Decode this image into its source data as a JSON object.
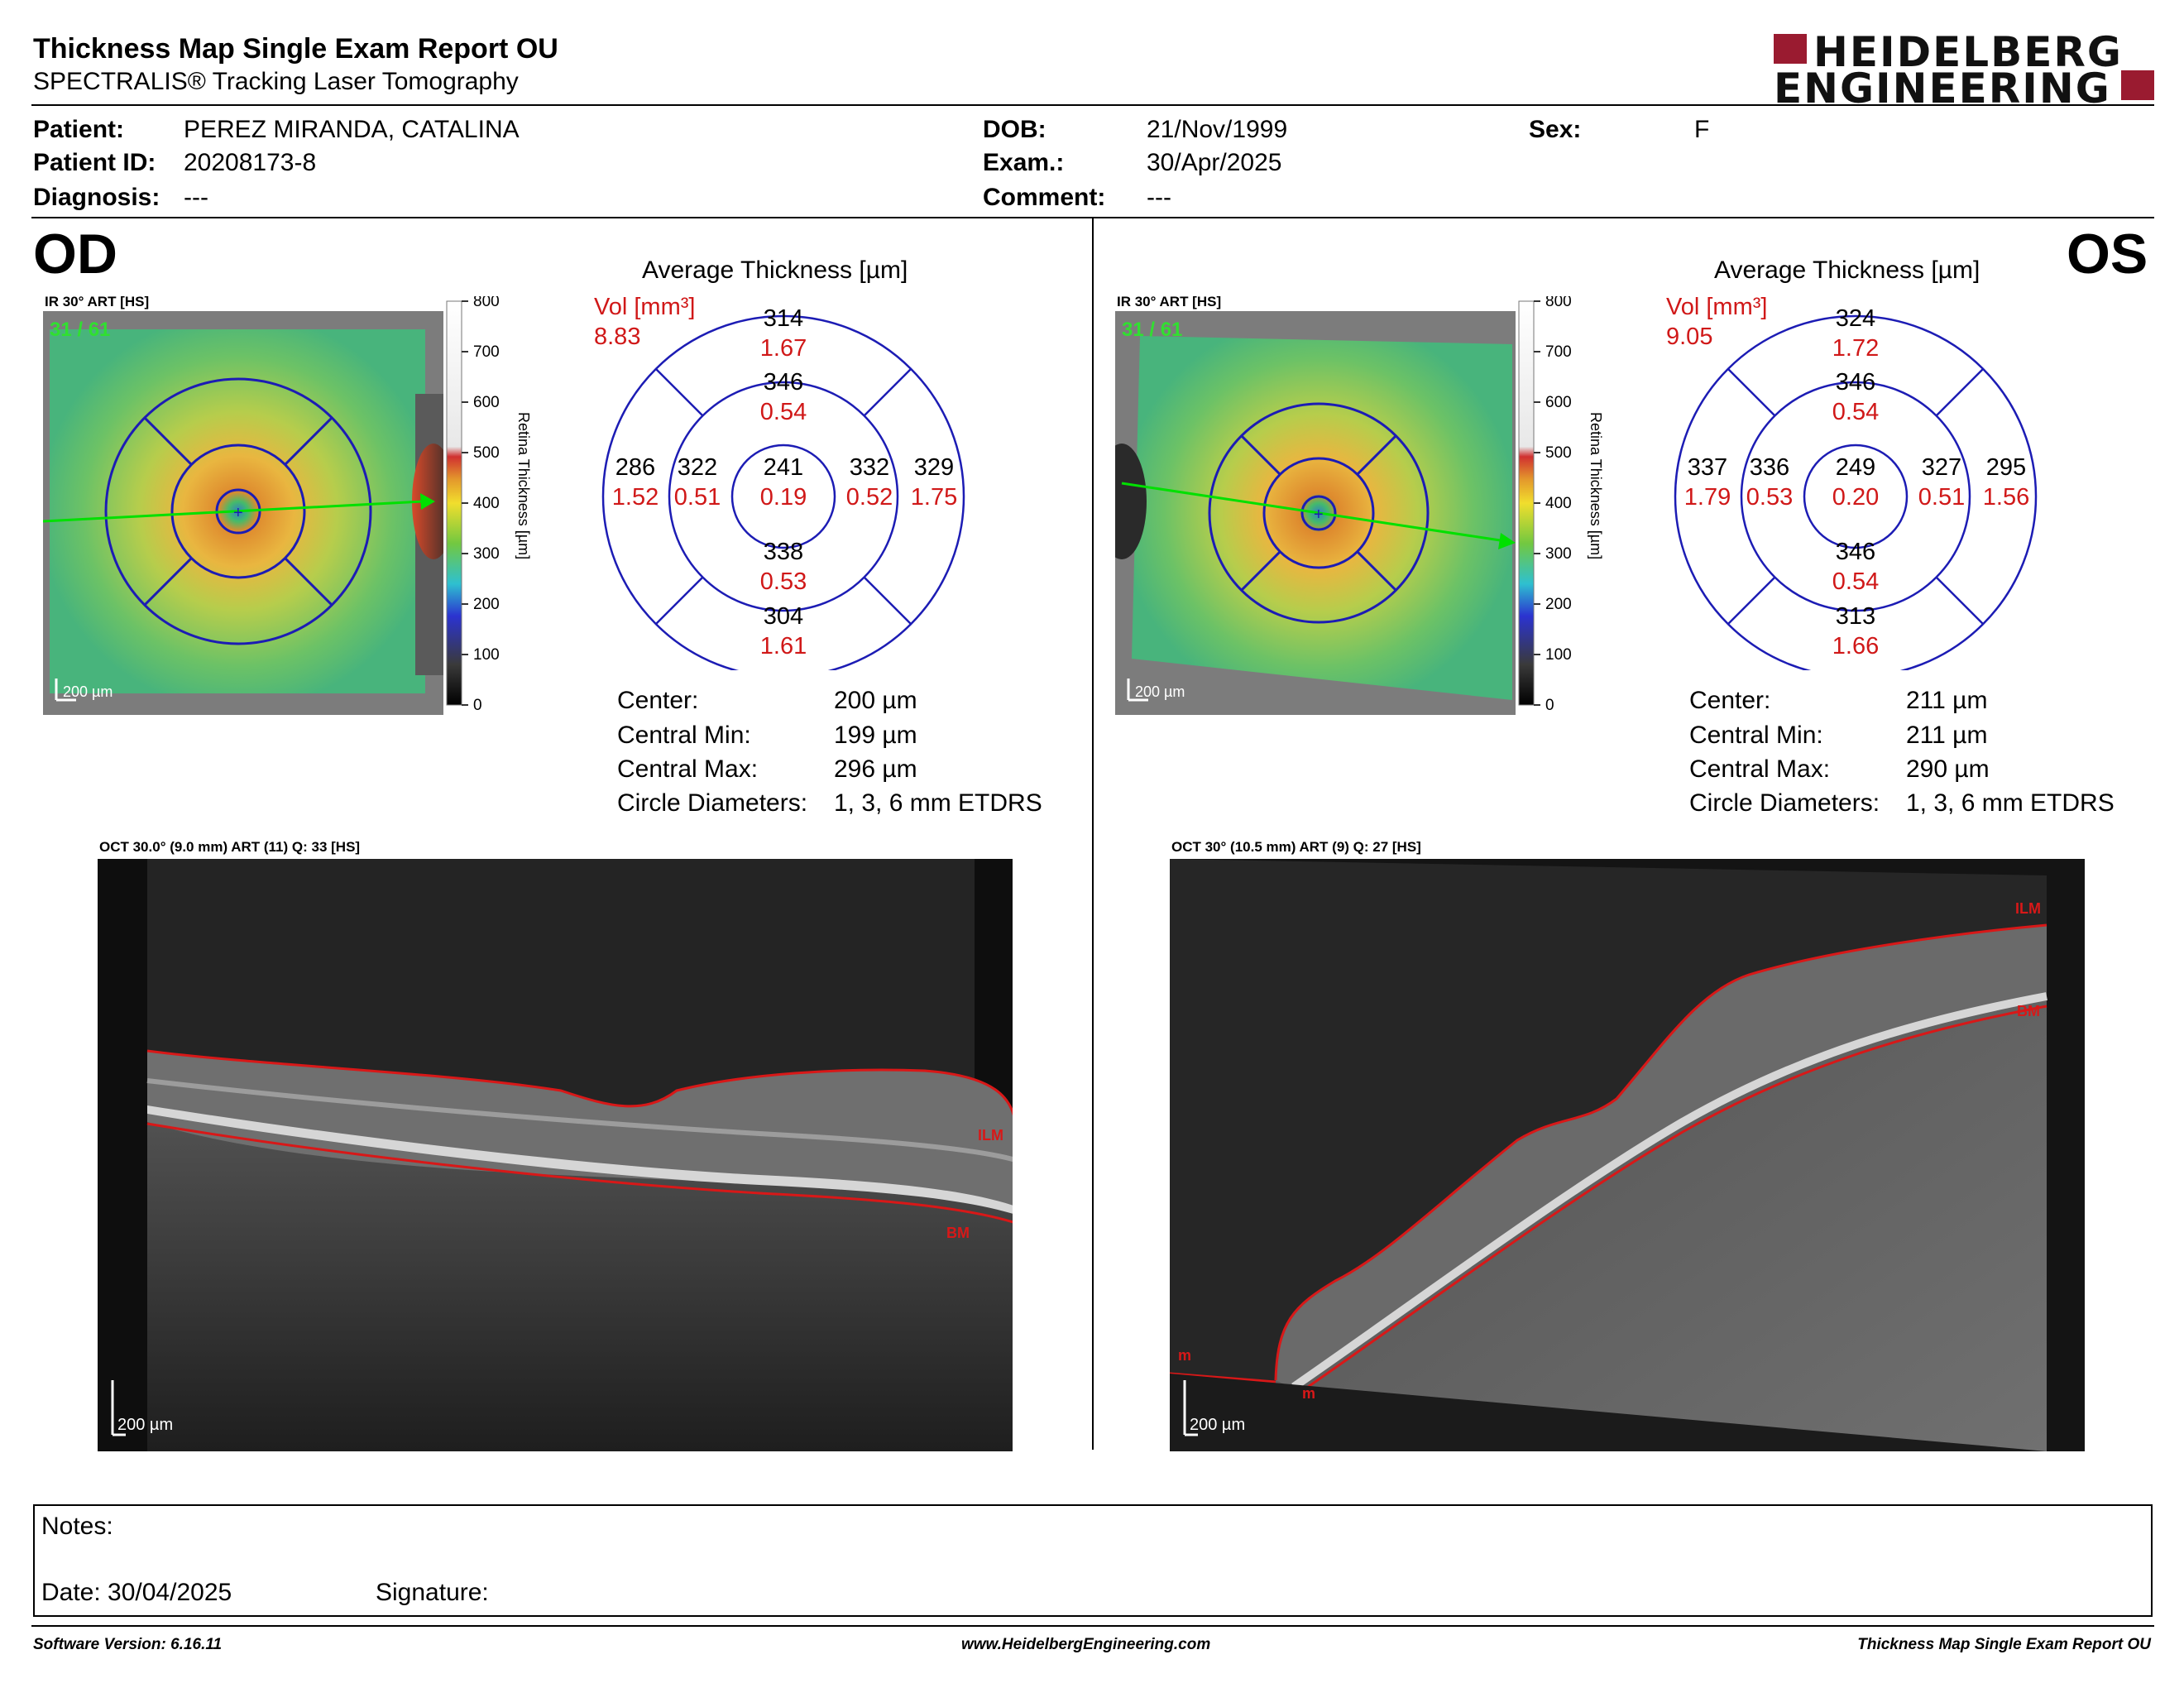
{
  "header": {
    "title": "Thickness Map Single Exam Report OU",
    "subtitle": "SPECTRALIS® Tracking Laser Tomography",
    "logo_line1": "HEIDELBERG",
    "logo_line2": "ENGINEERING",
    "brand_color": "#9a1b30"
  },
  "patient": {
    "patient_label": "Patient:",
    "patient_value": "PEREZ MIRANDA, CATALINA",
    "id_label": "Patient ID:",
    "id_value": "20208173-8",
    "diagnosis_label": "Diagnosis:",
    "diagnosis_value": "---",
    "dob_label": "DOB:",
    "dob_value": "21/Nov/1999",
    "exam_label": "Exam.:",
    "exam_value": "30/Apr/2025",
    "comment_label": "Comment:",
    "comment_value": "---",
    "sex_label": "Sex:",
    "sex_value": "F"
  },
  "od": {
    "eye": "OD",
    "fundus_label": "IR 30° ART [HS]",
    "fundus_counter": "31 / 61",
    "scale_label": "200 µm",
    "colorbar_ticks": [
      "800",
      "700",
      "600",
      "500",
      "400",
      "300",
      "200",
      "100",
      "0"
    ],
    "colorbar_title": "Retina  Thickness [µm]",
    "avg_title": "Average Thickness [µm]",
    "vol_label": "Vol [mm³]",
    "vol_value": "8.83",
    "grid": {
      "outer_sup": [
        "314",
        "1.67"
      ],
      "inner_sup": [
        "346",
        "0.54"
      ],
      "outer_nas": [
        "286",
        "1.52"
      ],
      "inner_nas": [
        "322",
        "0.51"
      ],
      "center": [
        "241",
        "0.19"
      ],
      "inner_tmp": [
        "332",
        "0.52"
      ],
      "outer_tmp": [
        "329",
        "1.75"
      ],
      "inner_inf": [
        "338",
        "0.53"
      ],
      "outer_inf": [
        "304",
        "1.61"
      ]
    },
    "stats": [
      {
        "label": "Center:",
        "value": "200 µm"
      },
      {
        "label": "Central Min:",
        "value": "199 µm"
      },
      {
        "label": "Central Max:",
        "value": "296 µm"
      },
      {
        "label": "Circle Diameters:",
        "value": "1, 3, 6 mm ETDRS"
      }
    ],
    "oct_label": "OCT 30.0° (9.0 mm) ART (11) Q: 33 [HS]",
    "oct_scale": "200 µm",
    "ilm_label": "ILM",
    "bm_label": "BM"
  },
  "os": {
    "eye": "OS",
    "fundus_label": "IR 30° ART [HS]",
    "fundus_counter": "31 / 61",
    "scale_label": "200 µm",
    "colorbar_ticks": [
      "800",
      "700",
      "600",
      "500",
      "400",
      "300",
      "200",
      "100",
      "0"
    ],
    "colorbar_title": "Retina  Thickness [µm]",
    "avg_title": "Average Thickness [µm]",
    "vol_label": "Vol [mm³]",
    "vol_value": "9.05",
    "grid": {
      "outer_sup": [
        "324",
        "1.72"
      ],
      "inner_sup": [
        "346",
        "0.54"
      ],
      "outer_nas": [
        "337",
        "1.79"
      ],
      "inner_nas": [
        "336",
        "0.53"
      ],
      "center": [
        "249",
        "0.20"
      ],
      "inner_tmp": [
        "327",
        "0.51"
      ],
      "outer_tmp": [
        "295",
        "1.56"
      ],
      "inner_inf": [
        "346",
        "0.54"
      ],
      "outer_inf": [
        "313",
        "1.66"
      ]
    },
    "stats": [
      {
        "label": "Center:",
        "value": "211 µm"
      },
      {
        "label": "Central Min:",
        "value": "211 µm"
      },
      {
        "label": "Central Max:",
        "value": "290 µm"
      },
      {
        "label": "Circle Diameters:",
        "value": "1, 3, 6 mm ETDRS"
      }
    ],
    "oct_label": "OCT 30° (10.5 mm) ART (9) Q: 27 [HS]",
    "oct_scale": "200 µm",
    "ilm_label": "ILM",
    "bm_label": "BM",
    "m_label": "m"
  },
  "notes": {
    "notes_label": "Notes:",
    "date_label": "Date: 30/04/2025",
    "signature_label": "Signature:"
  },
  "footer": {
    "left": "Software Version: 6.16.11",
    "center": "www.HeidelbergEngineering.com",
    "right": "Thickness Map Single Exam Report OU"
  }
}
